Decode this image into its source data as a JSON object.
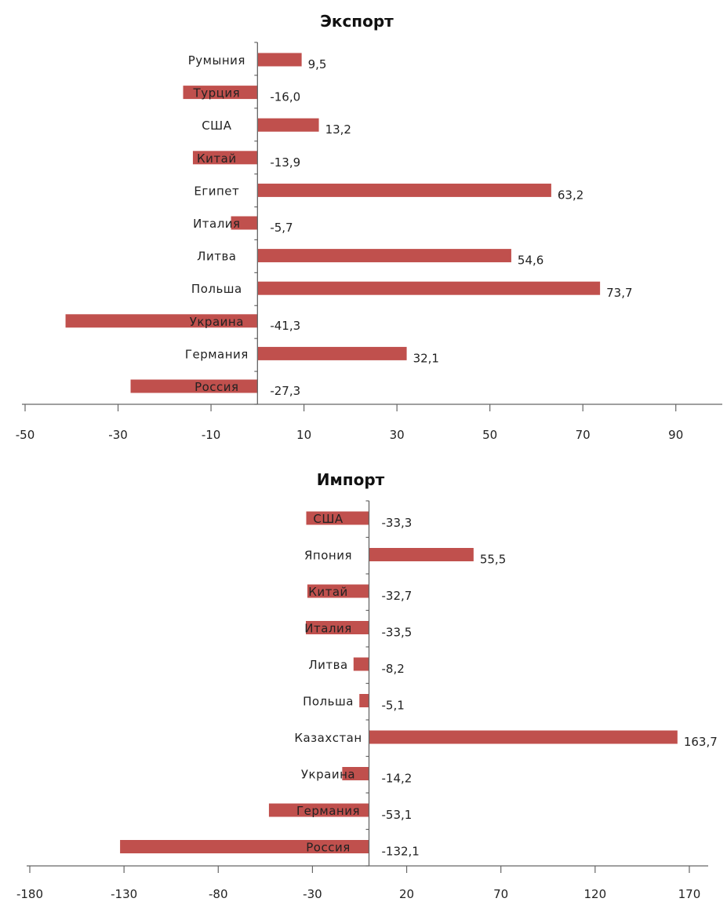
{
  "chart_data": [
    {
      "type": "bar",
      "orientation": "horizontal",
      "title": "Экспорт",
      "categories": [
        "Румыния",
        "Турция",
        "США",
        "Китай",
        "Египет",
        "Италия",
        "Литва",
        "Польша",
        "Украина",
        "Германия",
        "Россия"
      ],
      "values": [
        9.5,
        -16.0,
        13.2,
        -13.9,
        63.2,
        -5.7,
        54.6,
        73.7,
        -41.3,
        32.1,
        -27.3
      ],
      "data_labels": [
        "9,5",
        "-16,0",
        "13,2",
        "-13,9",
        "63,2",
        "-5,7",
        "54,6",
        "73,7",
        "-41,3",
        "32,1",
        "-27,3"
      ],
      "xlim": [
        -50,
        100
      ],
      "x_ticks": [
        -50,
        -30,
        -10,
        10,
        30,
        50,
        70,
        90
      ],
      "x_tick_labels": [
        "-50",
        "-30",
        "-10",
        "10",
        "30",
        "50",
        "70",
        "90"
      ],
      "grid": false,
      "legend": "none",
      "bar_color": "#c0504d"
    },
    {
      "type": "bar",
      "orientation": "horizontal",
      "title": "Импорт",
      "categories": [
        "США",
        "Япония",
        "Китай",
        "Италия",
        "Литва",
        "Польша",
        "Казахстан",
        "Украина",
        "Германия",
        "Россия"
      ],
      "values": [
        -33.3,
        55.5,
        -32.7,
        -33.5,
        -8.2,
        -5.1,
        163.7,
        -14.2,
        -53.1,
        -132.1
      ],
      "data_labels": [
        "-33,3",
        "55,5",
        "-32,7",
        "-33,5",
        "-8,2",
        "-5,1",
        "163,7",
        "-14,2",
        "-53,1",
        "-132,1"
      ],
      "xlim": [
        -180,
        180
      ],
      "x_ticks": [
        -180,
        -130,
        -80,
        -30,
        20,
        70,
        120,
        170
      ],
      "x_tick_labels": [
        "-180",
        "-130",
        "-80",
        "-30",
        "20",
        "70",
        "120",
        "170"
      ],
      "grid": false,
      "legend": "none",
      "bar_color": "#c0504d"
    }
  ]
}
